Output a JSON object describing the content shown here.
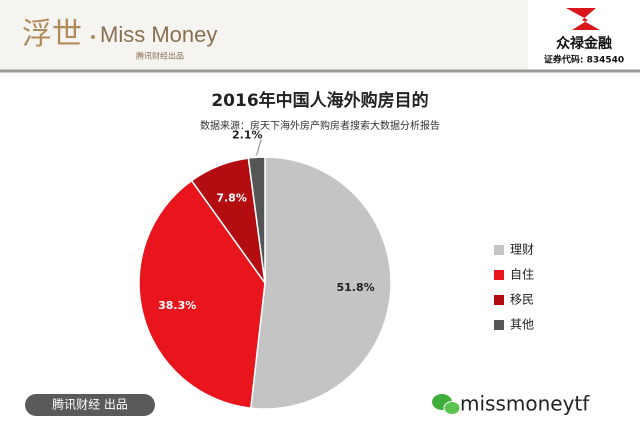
{
  "header": {
    "brand_cn": "浮世",
    "brand_en": "Miss Money",
    "brand_note": "腾讯财经出品",
    "partner": "众禄金融",
    "partner_code": "证券代码: 834540"
  },
  "chart_data": {
    "type": "pie",
    "title": "2016年中国人海外购房目的",
    "subtitle": "数据来源：房天下海外房产购房者搜索大数据分析报告",
    "categories": [
      "理财",
      "自住",
      "移民",
      "其他"
    ],
    "values": [
      51.8,
      38.3,
      7.8,
      2.1
    ],
    "value_labels": [
      "51.8%",
      "38.3%",
      "7.8%",
      "2.1%"
    ],
    "colors": [
      "#c4c4c4",
      "#e8161c",
      "#b30d12",
      "#555555"
    ],
    "legend": "right"
  },
  "footer": {
    "badge": "腾讯财经 出品",
    "account": "missmoneytf"
  }
}
